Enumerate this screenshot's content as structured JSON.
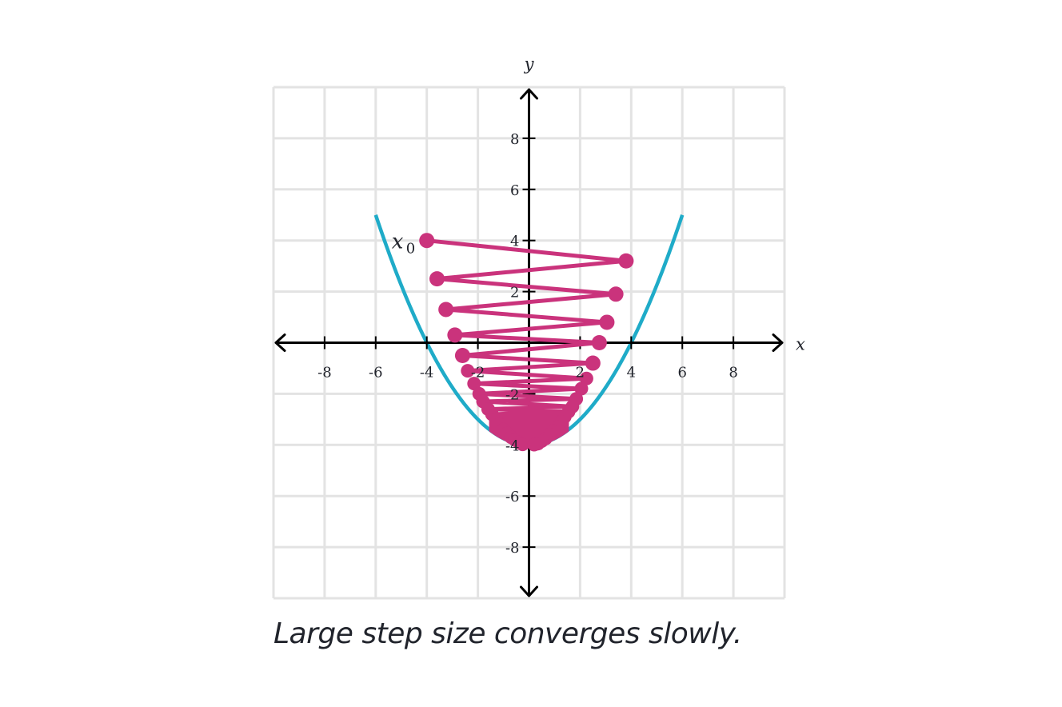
{
  "chart_data": {
    "type": "line",
    "function": "y = x^2/4 - 4",
    "xlim": [
      -10,
      10
    ],
    "ylim": [
      -10,
      10
    ],
    "grid": true,
    "xlabel": "x",
    "ylabel": "y",
    "x_ticks": [
      -8,
      -6,
      -4,
      -2,
      2,
      4,
      6,
      8
    ],
    "y_ticks": [
      -8,
      -6,
      -4,
      -2,
      2,
      4,
      6,
      8
    ],
    "x_tick_labels": [
      "-8",
      "-6",
      "-4",
      "-2",
      "2",
      "4",
      "6",
      "8"
    ],
    "y_tick_labels": [
      "-8",
      "-6",
      "-4",
      "-2",
      "2",
      "4",
      "6",
      "8"
    ],
    "start_label": "x",
    "start_label_sub": "0",
    "iterates": [
      [
        -4.0,
        4.0
      ],
      [
        3.8,
        3.2
      ],
      [
        -3.6,
        2.5
      ],
      [
        3.4,
        1.9
      ],
      [
        -3.25,
        1.3
      ],
      [
        3.05,
        0.8
      ],
      [
        -2.9,
        0.3
      ],
      [
        2.75,
        0.0
      ],
      [
        -2.6,
        -0.5
      ],
      [
        2.5,
        -0.8
      ],
      [
        -2.4,
        -1.1
      ],
      [
        2.25,
        -1.4
      ],
      [
        -2.15,
        -1.6
      ],
      [
        2.05,
        -1.8
      ],
      [
        -1.95,
        -2.0
      ],
      [
        1.85,
        -2.2
      ],
      [
        -1.8,
        -2.3
      ],
      [
        1.7,
        -2.5
      ],
      [
        -1.6,
        -2.6
      ],
      [
        1.55,
        -2.7
      ],
      [
        -1.45,
        -2.8
      ],
      [
        1.4,
        -2.9
      ],
      [
        -1.3,
        -3.0
      ],
      [
        1.25,
        -3.1
      ],
      [
        -1.15,
        -3.2
      ],
      [
        1.1,
        -3.3
      ],
      [
        -1.0,
        -3.4
      ],
      [
        0.95,
        -3.45
      ],
      [
        -0.85,
        -3.55
      ],
      [
        0.8,
        -3.6
      ],
      [
        -0.7,
        -3.7
      ],
      [
        0.65,
        -3.75
      ],
      [
        -0.55,
        -3.8
      ],
      [
        0.5,
        -3.85
      ],
      [
        -0.4,
        -3.9
      ],
      [
        0.35,
        -3.95
      ],
      [
        -0.25,
        -3.98
      ],
      [
        0.2,
        -3.99
      ]
    ],
    "colors": {
      "curve": "#1fabc8",
      "path": "#ca337c",
      "grid": "#e3e3e3",
      "axis": "#000000"
    }
  },
  "caption": "Large step size converges slowly."
}
